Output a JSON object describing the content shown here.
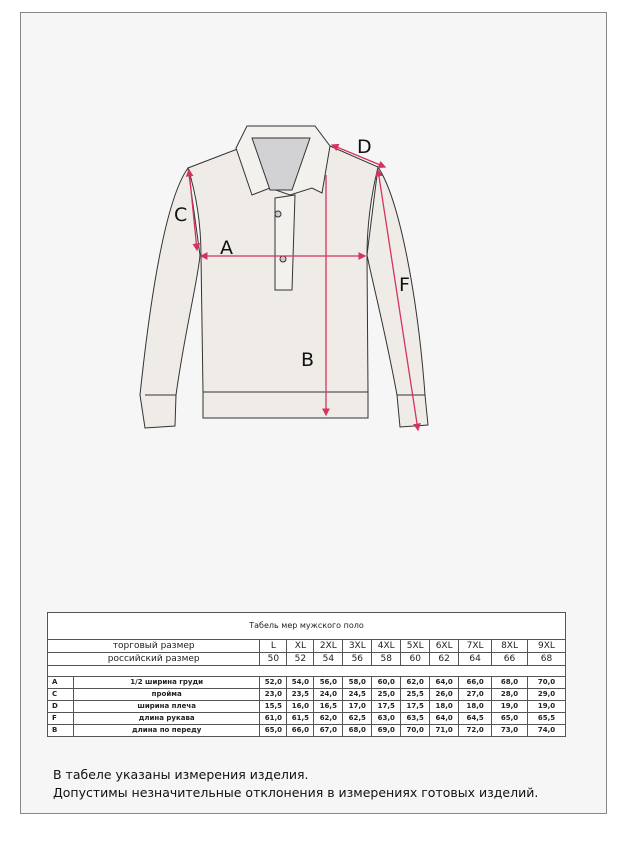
{
  "diagram": {
    "labels": {
      "A": "A",
      "B": "B",
      "C": "C",
      "D": "D",
      "F": "F"
    },
    "colors": {
      "garment": "#efece8",
      "arrow": "#d4335f",
      "outline": "#333333"
    }
  },
  "table": {
    "title": "Табель мер мужского поло",
    "trade_size_label": "торговый размер",
    "russian_size_label": "российский размер",
    "sizes": [
      "L",
      "XL",
      "2XL",
      "3XL",
      "4XL",
      "5XL",
      "6XL",
      "7XL",
      "8XL",
      "9XL"
    ],
    "russian_sizes": [
      "50",
      "52",
      "54",
      "56",
      "58",
      "60",
      "62",
      "64",
      "66",
      "68"
    ],
    "rows": [
      {
        "code": "A",
        "label": "1/2 ширина груди",
        "values": [
          "52,0",
          "54,0",
          "56,0",
          "58,0",
          "60,0",
          "62,0",
          "64,0",
          "66,0",
          "68,0",
          "70,0"
        ]
      },
      {
        "code": "C",
        "label": "пройма",
        "values": [
          "23,0",
          "23,5",
          "24,0",
          "24,5",
          "25,0",
          "25,5",
          "26,0",
          "27,0",
          "28,0",
          "29,0"
        ]
      },
      {
        "code": "D",
        "label": "ширина плеча",
        "values": [
          "15,5",
          "16,0",
          "16,5",
          "17,0",
          "17,5",
          "17,5",
          "18,0",
          "18,0",
          "19,0",
          "19,0"
        ]
      },
      {
        "code": "F",
        "label": "длина рукава",
        "values": [
          "61,0",
          "61,5",
          "62,0",
          "62,5",
          "63,0",
          "63,5",
          "64,0",
          "64,5",
          "65,0",
          "65,5"
        ]
      },
      {
        "code": "B",
        "label": "длина по переду",
        "values": [
          "65,0",
          "66,0",
          "67,0",
          "68,0",
          "69,0",
          "70,0",
          "71,0",
          "72,0",
          "73,0",
          "74,0"
        ]
      }
    ]
  },
  "notes": [
    "В табеле указаны измерения изделия.",
    "Допустимы незначительные отклонения в измерениях готовых изделий."
  ]
}
